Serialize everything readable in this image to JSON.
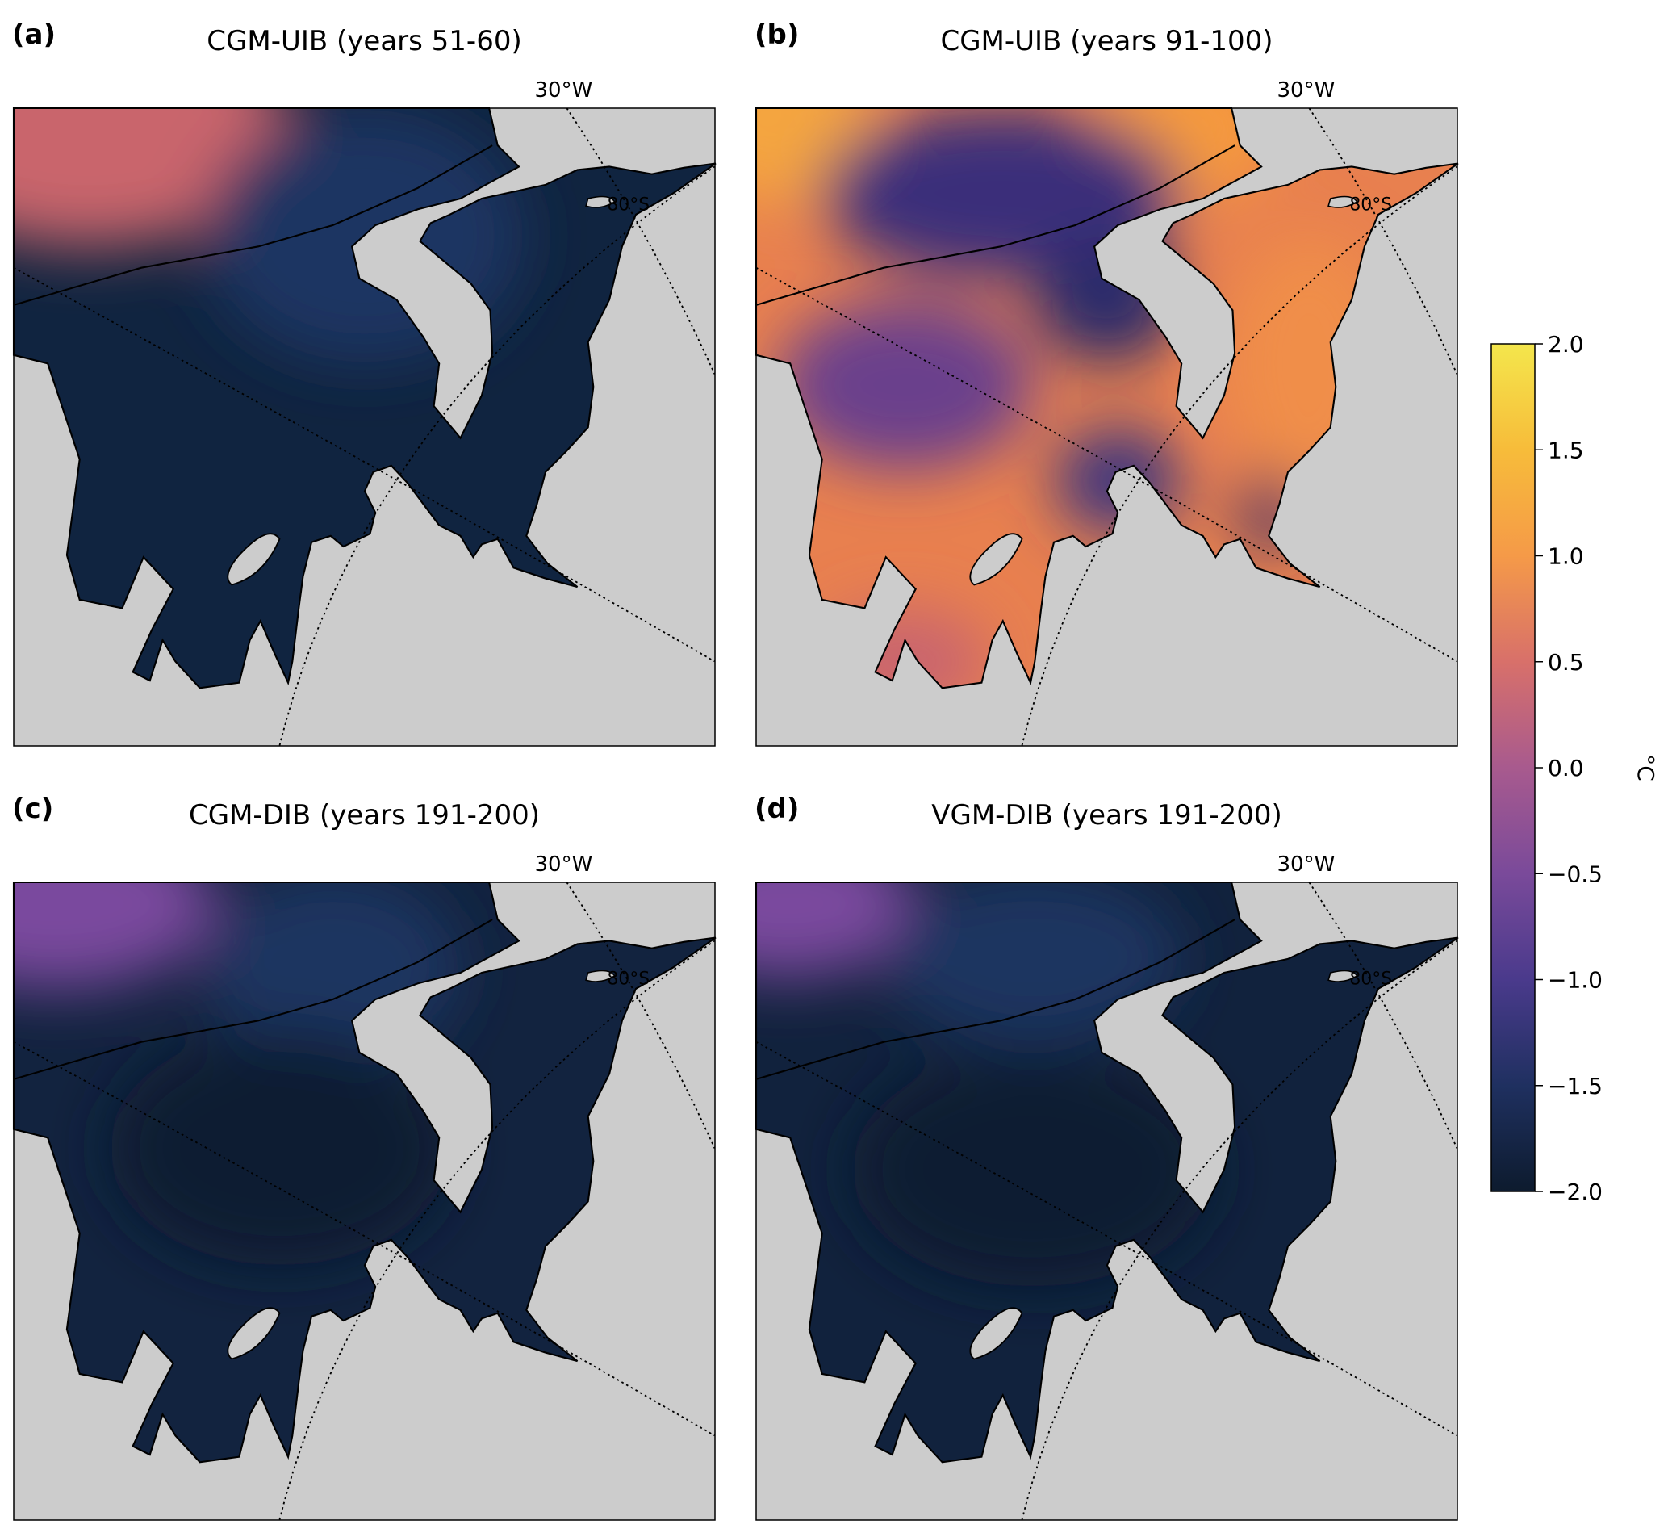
{
  "panels": [
    {
      "label": "(a)",
      "title": "CGM-UIB (years 51-60)",
      "lon_label": "30°W",
      "lat_label": "80°S"
    },
    {
      "label": "(b)",
      "title": "CGM-UIB (years 91-100)",
      "lon_label": "30°W",
      "lat_label": "80°S"
    },
    {
      "label": "(c)",
      "title": "CGM-DIB (years 191-200)",
      "lon_label": "30°W",
      "lat_label": "80°S"
    },
    {
      "label": "(d)",
      "title": "VGM-DIB (years 191-200)",
      "lon_label": "30°W",
      "lat_label": "80°S"
    }
  ],
  "colorbar": {
    "lim": [
      -2,
      2
    ],
    "label": "°C",
    "ticks": [
      {
        "value": 2,
        "label": "2.0"
      },
      {
        "value": 1.5,
        "label": "1.5"
      },
      {
        "value": 1,
        "label": "1.0"
      },
      {
        "value": 0.5,
        "label": "0.5"
      },
      {
        "value": 0,
        "label": "0.0"
      },
      {
        "value": -0.5,
        "label": "−0.5"
      },
      {
        "value": -1,
        "label": "−1.0"
      },
      {
        "value": -1.5,
        "label": "−1.5"
      },
      {
        "value": -2,
        "label": "−2.0"
      }
    ]
  }
}
